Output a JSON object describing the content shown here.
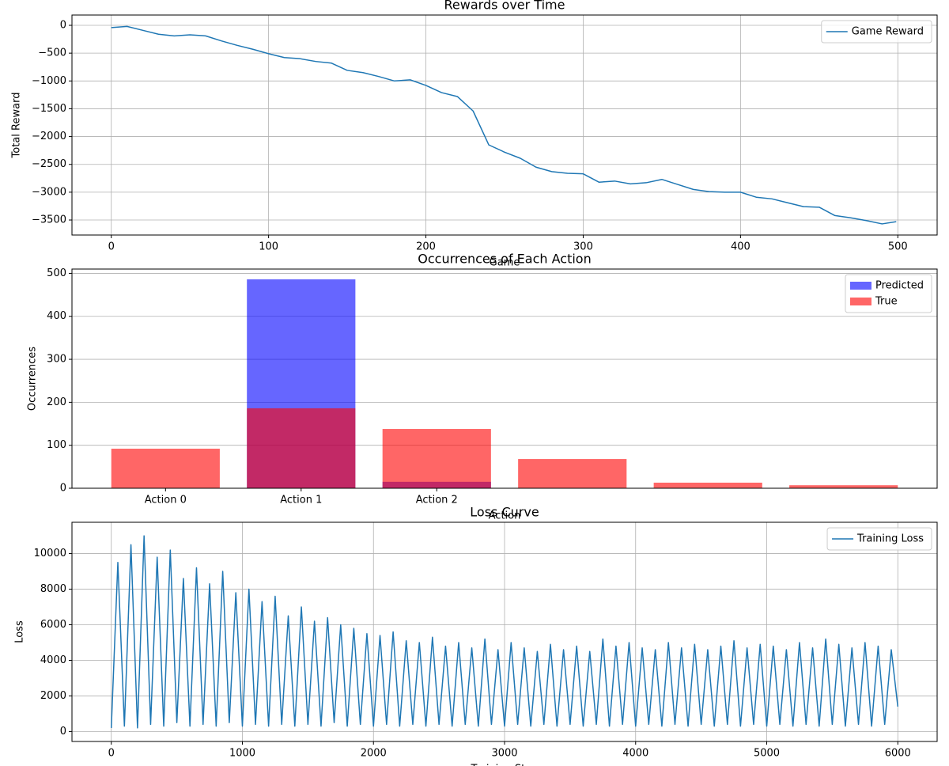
{
  "chart_data": [
    {
      "type": "line",
      "title": "Rewards over Time",
      "xlabel": "Game",
      "ylabel": "Total Reward",
      "x": [
        0,
        10,
        20,
        30,
        40,
        50,
        60,
        70,
        80,
        90,
        100,
        110,
        120,
        130,
        140,
        150,
        160,
        170,
        180,
        190,
        200,
        210,
        220,
        230,
        240,
        250,
        260,
        270,
        280,
        290,
        300,
        310,
        320,
        330,
        340,
        350,
        360,
        370,
        380,
        390,
        400,
        410,
        420,
        430,
        440,
        450,
        460,
        470,
        480,
        490,
        499
      ],
      "series": [
        {
          "name": "Game Reward",
          "color": "#1f77b4",
          "values": [
            -40,
            -20,
            -90,
            -160,
            -190,
            -170,
            -190,
            -280,
            -360,
            -430,
            -510,
            -580,
            -600,
            -650,
            -680,
            -810,
            -850,
            -920,
            -1000,
            -980,
            -1080,
            -1210,
            -1280,
            -1540,
            -2150,
            -2280,
            -2390,
            -2550,
            -2630,
            -2660,
            -2670,
            -2820,
            -2800,
            -2850,
            -2830,
            -2770,
            -2860,
            -2950,
            -2990,
            -3000,
            -3000,
            -3090,
            -3120,
            -3190,
            -3260,
            -3270,
            -3420,
            -3460,
            -3510,
            -3570,
            -3530
          ]
        }
      ],
      "xlim": [
        -25,
        525
      ],
      "xticks": [
        0,
        100,
        200,
        300,
        400,
        500
      ],
      "ylim": [
        -3770,
        185
      ],
      "yticks": [
        {
          "value": -3500,
          "label": "−3500"
        },
        {
          "value": -3000,
          "label": "−3000"
        },
        {
          "value": -2500,
          "label": "−2500"
        },
        {
          "value": -2000,
          "label": "−2000"
        },
        {
          "value": -1500,
          "label": "−1500"
        },
        {
          "value": -1000,
          "label": "−1000"
        },
        {
          "value": -500,
          "label": "−500"
        },
        0
      ],
      "grid": true,
      "legend": "upper right"
    },
    {
      "type": "bar",
      "title": "Occurrences of Each Action",
      "xlabel": "Action",
      "ylabel": "Occurrences",
      "categories": [
        "Action 0",
        "Action 1",
        "Action 2",
        null,
        null,
        null
      ],
      "series": [
        {
          "name": "Predicted",
          "color": "#0000ff",
          "values": [
            0,
            486,
            15,
            0,
            0,
            0
          ]
        },
        {
          "name": "True",
          "color": "#ff0000",
          "values": [
            92,
            186,
            138,
            68,
            13,
            7
          ]
        }
      ],
      "alpha": 0.6,
      "ylim": [
        0,
        510
      ],
      "yticks": [
        0,
        100,
        200,
        300,
        400,
        500
      ],
      "grid": "y",
      "legend": "upper right"
    },
    {
      "type": "line",
      "title": "Loss Curve",
      "xlabel": "Training Step",
      "ylabel": "Loss",
      "x": [
        0,
        50,
        100,
        150,
        200,
        250,
        300,
        350,
        400,
        450,
        500,
        550,
        600,
        650,
        700,
        750,
        800,
        850,
        900,
        950,
        1000,
        1050,
        1100,
        1150,
        1200,
        1250,
        1300,
        1350,
        1400,
        1450,
        1500,
        1550,
        1600,
        1650,
        1700,
        1750,
        1800,
        1850,
        1900,
        1950,
        2000,
        2050,
        2100,
        2150,
        2200,
        2250,
        2300,
        2350,
        2400,
        2450,
        2500,
        2550,
        2600,
        2650,
        2700,
        2750,
        2800,
        2850,
        2900,
        2950,
        3000,
        3050,
        3100,
        3150,
        3200,
        3250,
        3300,
        3350,
        3400,
        3450,
        3500,
        3550,
        3600,
        3650,
        3700,
        3750,
        3800,
        3850,
        3900,
        3950,
        4000,
        4050,
        4100,
        4150,
        4200,
        4250,
        4300,
        4350,
        4400,
        4450,
        4500,
        4550,
        4600,
        4650,
        4700,
        4750,
        4800,
        4850,
        4900,
        4950,
        5000,
        5050,
        5100,
        5150,
        5200,
        5250,
        5300,
        5350,
        5400,
        5450,
        5500,
        5550,
        5600,
        5650,
        5700,
        5750,
        5800,
        5850,
        5900,
        5950,
        6000
      ],
      "series": [
        {
          "name": "Training Loss",
          "color": "#1f77b4",
          "values": [
            200,
            9500,
            300,
            10500,
            200,
            11000,
            400,
            9800,
            300,
            10200,
            500,
            8600,
            300,
            9200,
            400,
            8300,
            300,
            9000,
            500,
            7800,
            300,
            8000,
            400,
            7300,
            300,
            7600,
            400,
            6500,
            300,
            7000,
            400,
            6200,
            300,
            6400,
            500,
            6000,
            300,
            5800,
            400,
            5500,
            300,
            5400,
            400,
            5600,
            300,
            5100,
            400,
            5000,
            300,
            5300,
            400,
            4800,
            300,
            5000,
            400,
            4700,
            300,
            5200,
            400,
            4600,
            300,
            5000,
            400,
            4700,
            300,
            4500,
            400,
            4900,
            300,
            4600,
            400,
            4800,
            300,
            4500,
            400,
            5200,
            300,
            4800,
            400,
            5000,
            300,
            4700,
            400,
            4600,
            300,
            5000,
            400,
            4700,
            300,
            4900,
            400,
            4600,
            300,
            4800,
            400,
            5100,
            300,
            4700,
            400,
            4900,
            300,
            4800,
            400,
            4600,
            300,
            5000,
            400,
            4700,
            300,
            5200,
            400,
            4900,
            300,
            4700,
            400,
            5000,
            300,
            4800,
            400,
            4600,
            1400
          ]
        }
      ],
      "xlim": [
        -300,
        6300
      ],
      "xticks": [
        0,
        1000,
        2000,
        3000,
        4000,
        5000,
        6000
      ],
      "ylim": [
        -560,
        11760
      ],
      "yticks": [
        0,
        2000,
        4000,
        6000,
        8000,
        10000
      ],
      "grid": true,
      "legend": "upper right"
    }
  ]
}
